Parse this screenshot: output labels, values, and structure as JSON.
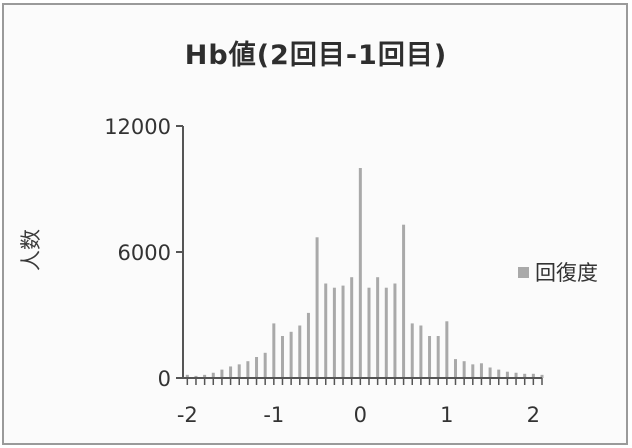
{
  "chart_data": {
    "type": "bar",
    "title": "Hb値(2回目-1回目)",
    "ylabel": "人数",
    "xlabel": "",
    "series": [
      {
        "name": "回復度"
      }
    ],
    "legend_position": "right",
    "ylim": [
      0,
      12000
    ],
    "yticks": [
      "0",
      "6000",
      "12000"
    ],
    "xlim": [
      -2.05,
      2.1
    ],
    "xticks": [
      "-2",
      "-1",
      "0",
      "1",
      "2"
    ],
    "x": [
      -2.0,
      -1.9,
      -1.8,
      -1.7,
      -1.6,
      -1.5,
      -1.4,
      -1.3,
      -1.2,
      -1.1,
      -1.0,
      -0.9,
      -0.8,
      -0.7,
      -0.6,
      -0.5,
      -0.4,
      -0.3,
      -0.2,
      -0.1,
      0.0,
      0.1,
      0.2,
      0.3,
      0.4,
      0.5,
      0.6,
      0.7,
      0.8,
      0.9,
      1.0,
      1.1,
      1.2,
      1.3,
      1.4,
      1.5,
      1.6,
      1.7,
      1.8,
      1.9,
      2.0,
      2.1
    ],
    "values": [
      150,
      100,
      150,
      250,
      400,
      550,
      650,
      800,
      1000,
      1200,
      2600,
      2000,
      2200,
      2500,
      3100,
      6700,
      4500,
      4300,
      4400,
      4800,
      10000,
      4300,
      4800,
      4300,
      4500,
      7300,
      2600,
      2500,
      2000,
      2000,
      2700,
      900,
      800,
      650,
      700,
      500,
      400,
      300,
      250,
      200,
      200,
      150
    ],
    "grid": false,
    "bar_color": "#a9a9a9"
  }
}
